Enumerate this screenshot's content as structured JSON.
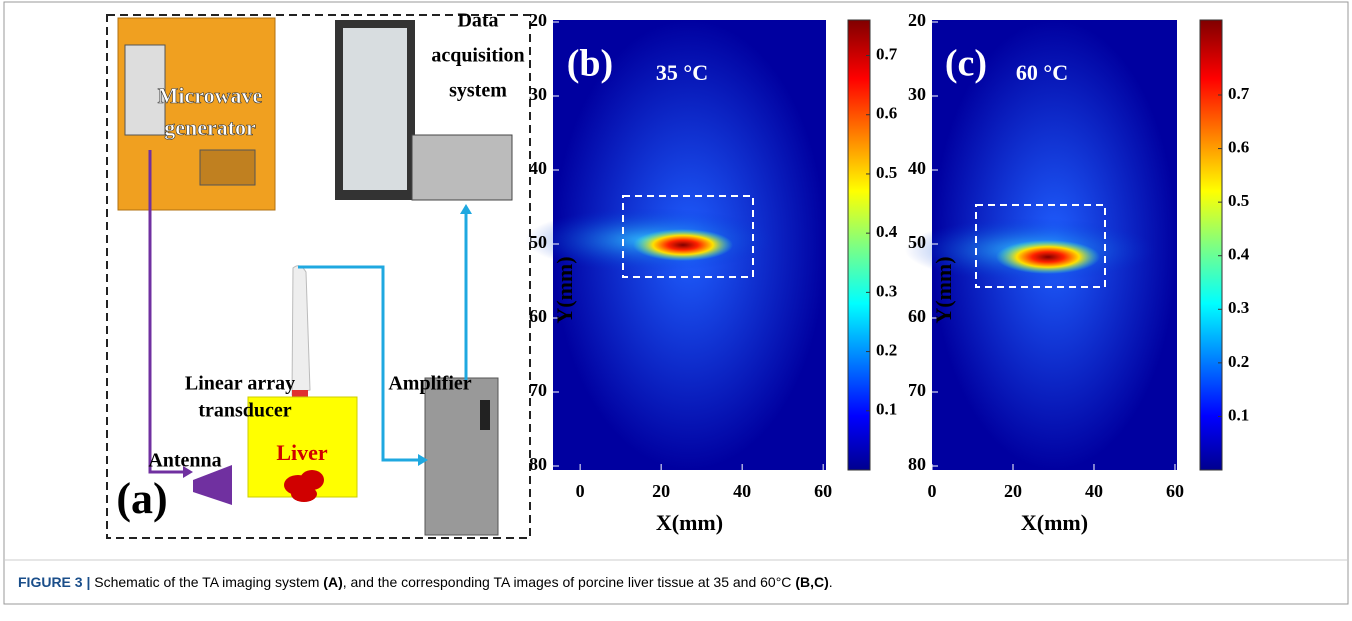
{
  "panel_a": {
    "label": "(a)",
    "generator": [
      "Microwave",
      "generator"
    ],
    "daq": [
      "Data",
      "acquisition",
      "system"
    ],
    "transducer": [
      "Linear array",
      "transducer"
    ],
    "amplifier": "Amplifier",
    "antenna": "Antenna",
    "liver": "Liver"
  },
  "panels": [
    {
      "label": "(b)",
      "temperature": "35 °C",
      "x_label": "X(mm)",
      "y_label": "Y(mm)",
      "xticks": [
        0,
        20,
        40,
        60
      ],
      "yticks": [
        20,
        30,
        40,
        50,
        60,
        70,
        80
      ],
      "colorbar_ticks": [
        0.1,
        0.2,
        0.3,
        0.4,
        0.5,
        0.6,
        0.7
      ],
      "xlim": [
        -6.7,
        60.7
      ],
      "ylim": [
        20,
        80
      ],
      "clim": [
        0,
        0.76
      ]
    },
    {
      "label": "(c)",
      "temperature": "60 °C",
      "x_label": "X(mm)",
      "y_label": "Y(mm)",
      "xticks": [
        0,
        20,
        40,
        60
      ],
      "yticks": [
        20,
        30,
        40,
        50,
        60,
        70,
        80
      ],
      "colorbar_ticks": [
        0.1,
        0.2,
        0.3,
        0.4,
        0.5,
        0.6,
        0.7
      ],
      "xlim": [
        0,
        60.5
      ],
      "ylim": [
        20,
        80
      ],
      "clim": [
        0,
        0.84
      ]
    }
  ],
  "caption": {
    "label": "FIGURE 3 |",
    "parts": [
      " Schematic of the TA imaging system ",
      "(A)",
      ", and the corresponding TA images of porcine liver tissue at 35 and 60°C ",
      "(B,C)",
      "."
    ]
  }
}
